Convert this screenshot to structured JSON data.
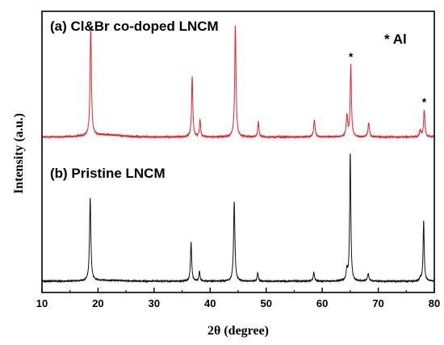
{
  "chart_data": {
    "type": "line",
    "xlabel": "2θ (degree)",
    "ylabel": "Intensity (a.u.)",
    "xlim": [
      10,
      80
    ],
    "x_ticks": [
      "10",
      "20",
      "30",
      "40",
      "50",
      "60",
      "70",
      "80"
    ],
    "y_ticks": "none",
    "grid": false,
    "annotations": [
      {
        "text": "(a) Cl&Br co-doped LNCM"
      },
      {
        "text": "(b) Pristine LNCM"
      },
      {
        "text": "* Al"
      }
    ],
    "impurity_peak_markers": [
      {
        "symbol": "*",
        "x": 65.1,
        "series": "(a)"
      },
      {
        "symbol": "*",
        "x": 78.2,
        "series": "(a)"
      }
    ],
    "series": [
      {
        "label_ref": "(a) Cl&Br co-doped LNCM",
        "color": "#e8222a",
        "baseline": 0.06,
        "hump": {
          "center": 21,
          "width": 4.5,
          "height": 0.015
        },
        "peaks": [
          {
            "x": 18.7,
            "height": 0.78,
            "width": 0.14
          },
          {
            "x": 36.8,
            "height": 0.43,
            "width": 0.13
          },
          {
            "x": 38.2,
            "height": 0.12,
            "width": 0.12
          },
          {
            "x": 44.5,
            "height": 0.79,
            "width": 0.14
          },
          {
            "x": 48.6,
            "height": 0.11,
            "width": 0.12
          },
          {
            "x": 58.6,
            "height": 0.12,
            "width": 0.15
          },
          {
            "x": 64.4,
            "height": 0.15,
            "width": 0.15
          },
          {
            "x": 65.1,
            "height": 0.51,
            "width": 0.13
          },
          {
            "x": 68.3,
            "height": 0.1,
            "width": 0.15
          },
          {
            "x": 77.5,
            "height": 0.05,
            "width": 0.15
          },
          {
            "x": 78.2,
            "height": 0.19,
            "width": 0.14
          }
        ]
      },
      {
        "label_ref": "(b) Pristine LNCM",
        "color": "#111111",
        "baseline": 0.06,
        "hump": {
          "center": 21,
          "width": 4.5,
          "height": 0.008
        },
        "peaks": [
          {
            "x": 18.6,
            "height": 0.77,
            "width": 0.14
          },
          {
            "x": 36.6,
            "height": 0.36,
            "width": 0.13
          },
          {
            "x": 38.1,
            "height": 0.09,
            "width": 0.12
          },
          {
            "x": 44.3,
            "height": 0.74,
            "width": 0.14
          },
          {
            "x": 48.5,
            "height": 0.08,
            "width": 0.12
          },
          {
            "x": 58.5,
            "height": 0.08,
            "width": 0.15
          },
          {
            "x": 64.4,
            "height": 0.1,
            "width": 0.15
          },
          {
            "x": 65.0,
            "height": 1.2,
            "width": 0.12
          },
          {
            "x": 68.2,
            "height": 0.07,
            "width": 0.15
          },
          {
            "x": 77.5,
            "height": 0.03,
            "width": 0.15
          },
          {
            "x": 78.1,
            "height": 0.56,
            "width": 0.12
          }
        ]
      }
    ]
  }
}
